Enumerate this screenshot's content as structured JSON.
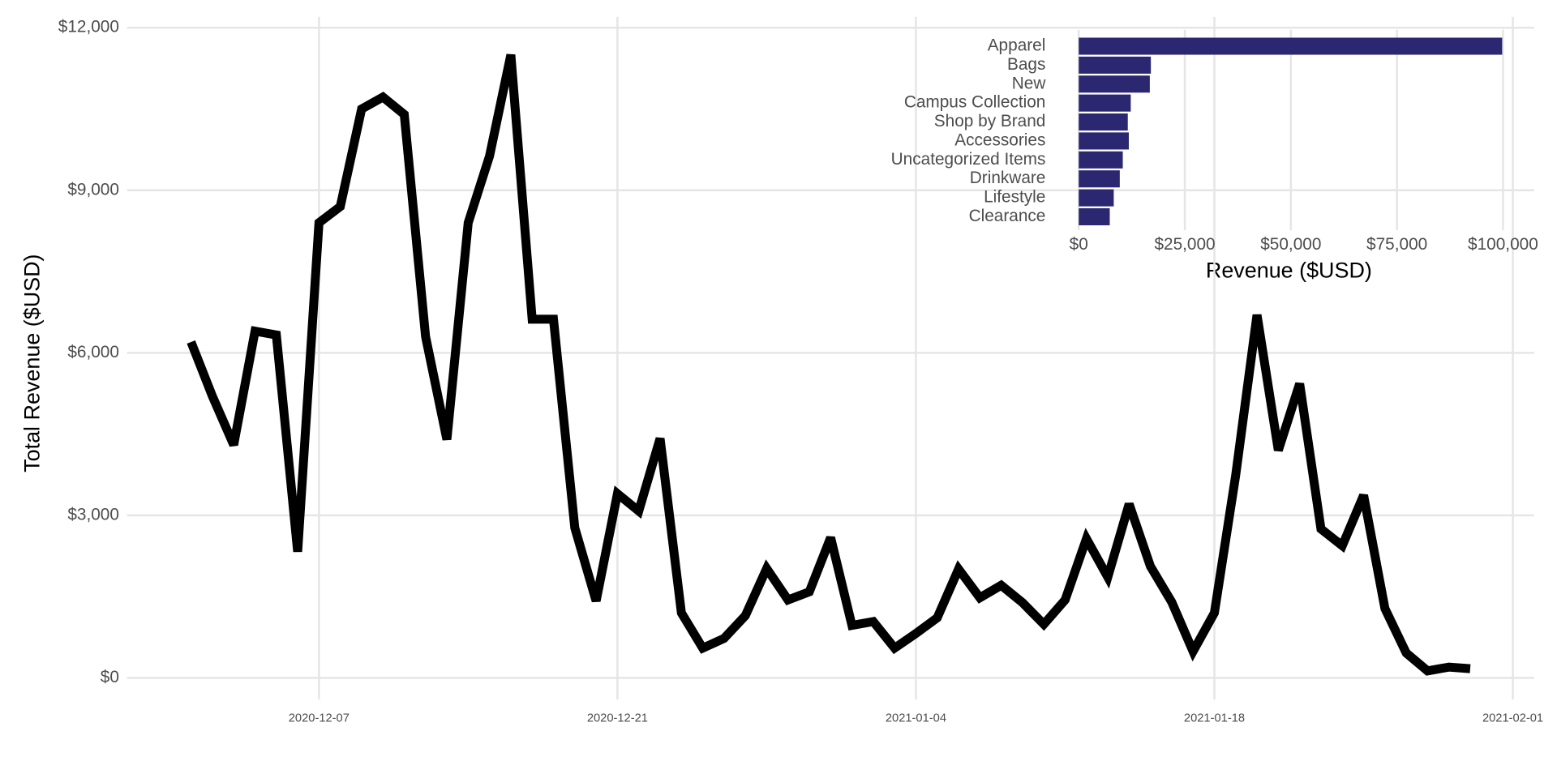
{
  "chart_data": [
    {
      "type": "line",
      "ylabel": "Total Revenue ($USD)",
      "x": [
        "2020-12-01",
        "2020-12-02",
        "2020-12-03",
        "2020-12-04",
        "2020-12-05",
        "2020-12-06",
        "2020-12-07",
        "2020-12-08",
        "2020-12-09",
        "2020-12-10",
        "2020-12-11",
        "2020-12-12",
        "2020-12-13",
        "2020-12-14",
        "2020-12-15",
        "2020-12-16",
        "2020-12-17",
        "2020-12-18",
        "2020-12-19",
        "2020-12-20",
        "2020-12-21",
        "2020-12-22",
        "2020-12-23",
        "2020-12-24",
        "2020-12-25",
        "2020-12-26",
        "2020-12-27",
        "2020-12-28",
        "2020-12-29",
        "2020-12-30",
        "2020-12-31",
        "2021-01-01",
        "2021-01-02",
        "2021-01-03",
        "2021-01-04",
        "2021-01-05",
        "2021-01-06",
        "2021-01-07",
        "2021-01-08",
        "2021-01-09",
        "2021-01-10",
        "2021-01-11",
        "2021-01-12",
        "2021-01-13",
        "2021-01-14",
        "2021-01-15",
        "2021-01-16",
        "2021-01-17",
        "2021-01-18",
        "2021-01-19",
        "2021-01-20",
        "2021-01-21",
        "2021-01-22",
        "2021-01-23",
        "2021-01-24",
        "2021-01-25",
        "2021-01-26",
        "2021-01-27",
        "2021-01-28",
        "2021-01-29",
        "2021-01-30"
      ],
      "values": [
        6200,
        5200,
        4300,
        6400,
        6330,
        2330,
        8400,
        8700,
        10500,
        10720,
        10400,
        6300,
        4400,
        8400,
        9630,
        11500,
        6620,
        6620,
        2770,
        1420,
        3400,
        3080,
        4420,
        1200,
        550,
        730,
        1150,
        2020,
        1440,
        1590,
        2590,
        970,
        1040,
        550,
        820,
        1110,
        2010,
        1480,
        1710,
        1390,
        990,
        1440,
        2570,
        1860,
        3210,
        2060,
        1400,
        490,
        1200,
        3740,
        6700,
        4200,
        5430,
        2750,
        2440,
        3370,
        1280,
        460,
        130,
        200,
        170
      ],
      "color": "#000000",
      "xlim": [
        "2020-11-28",
        "2021-02-02"
      ],
      "xticks": [
        "2020-12-07",
        "2020-12-21",
        "2021-01-04",
        "2021-01-18",
        "2021-02-01"
      ],
      "ylim": [
        -400,
        12200
      ],
      "yticks": [
        {
          "value": 0,
          "label": "$0"
        },
        {
          "value": 3000,
          "label": "$3,000"
        },
        {
          "value": 6000,
          "label": "$6,000"
        },
        {
          "value": 9000,
          "label": "$9,000"
        },
        {
          "value": 12000,
          "label": "$12,000"
        }
      ],
      "grid": true
    },
    {
      "type": "bar",
      "orientation": "horizontal",
      "xlabel": "Revenue ($USD)",
      "categories": [
        "Apparel",
        "Bags",
        "New",
        "Campus Collection",
        "Shop by Brand",
        "Accessories",
        "Uncategorized Items",
        "Drinkware",
        "Lifestyle",
        "Clearance"
      ],
      "values": [
        99800,
        17000,
        16750,
        12260,
        11560,
        11800,
        10380,
        9670,
        8250,
        7310
      ],
      "color": "#2b2770",
      "xlim": [
        -5000,
        105000
      ],
      "xticks": [
        {
          "value": 0,
          "label": "$0"
        },
        {
          "value": 25000,
          "label": "$25,000"
        },
        {
          "value": 50000,
          "label": "$50,000"
        },
        {
          "value": 75000,
          "label": "$75,000"
        },
        {
          "value": 100000,
          "label": "$100,000"
        }
      ],
      "grid": true
    }
  ]
}
